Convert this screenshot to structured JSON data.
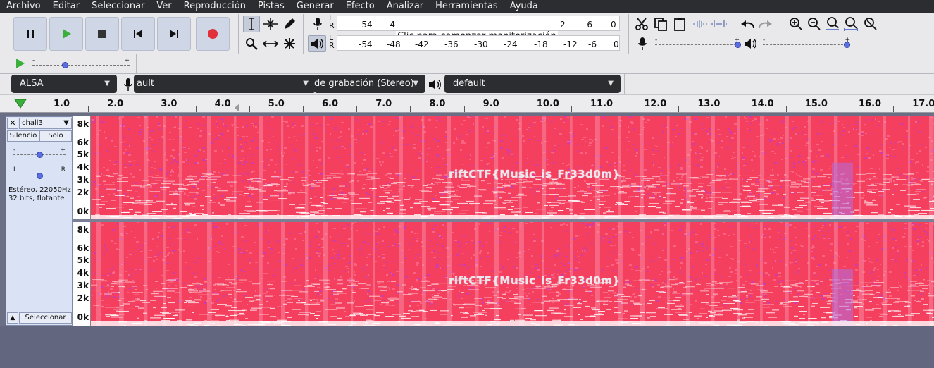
{
  "menu": [
    "Archivo",
    "Editar",
    "Seleccionar",
    "Ver",
    "Reproducción",
    "Pistas",
    "Generar",
    "Efecto",
    "Analizar",
    "Herramientas",
    "Ayuda"
  ],
  "meters": {
    "record_ticks": [
      "-54",
      "-4"
    ],
    "record_ticks_right": [
      "2",
      "-6",
      "0"
    ],
    "monitor_hint": "Clic para comenzar monitorización",
    "play_ticks": [
      "-54",
      "-48",
      "-42",
      "-36",
      "-30",
      "-24",
      "-18",
      "-12",
      "-6",
      "0"
    ],
    "lr": [
      "L",
      "R"
    ]
  },
  "devices": {
    "host": "ALSA",
    "recording_device": "ault",
    "channels": "de grabación (Stereo)",
    "playback_device": "default"
  },
  "ruler": {
    "labels": [
      "1.0",
      "2.0",
      "3.0",
      "4.0",
      "5.0",
      "6.0",
      "7.0",
      "8.0",
      "9.0",
      "10.0",
      "11.0",
      "12.0",
      "13.0",
      "14.0",
      "15.0",
      "16.0",
      "17.0"
    ]
  },
  "track": {
    "name": "chall3",
    "mute_label": "Silencio",
    "solo_label": "Solo",
    "gain_minus": "-",
    "gain_plus": "+",
    "pan_left": "L",
    "pan_right": "R",
    "info_line1": "Estéreo, 22050Hz",
    "info_line2": "32 bits, flotante",
    "select_label": "Seleccionar",
    "freq_labels": [
      "8k",
      "6k",
      "5k",
      "4k",
      "3k",
      "2k",
      "0k"
    ],
    "flag_text": "riftCTF{Music_is_Fr33d0m}"
  },
  "colors": {
    "spectro_bg": "#f43f5e",
    "spectro_hot": "#ff2d55",
    "spectro_purple": "#b93ad8",
    "spectro_white": "#ffffff"
  }
}
